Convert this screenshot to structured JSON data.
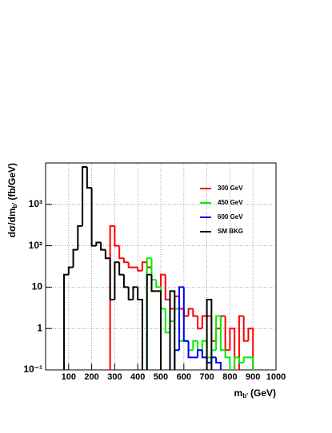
{
  "chart_data": {
    "type": "histogram",
    "x_label": {
      "main": "m",
      "sub": "b'",
      "unit": "(GeV)"
    },
    "y_label": {
      "main": "dσ/dm",
      "sub": "b'",
      "unit": "(fb/GeV)"
    },
    "bins": [
      80,
      100,
      120,
      140,
      160,
      180,
      200,
      220,
      240,
      260,
      280,
      300,
      320,
      340,
      360,
      380,
      400,
      420,
      440,
      460,
      480,
      500,
      520,
      540,
      560,
      580,
      600,
      620,
      640,
      660,
      680,
      700,
      720,
      740,
      760,
      780,
      800,
      820,
      840,
      860,
      880,
      900,
      920
    ],
    "series": [
      {
        "name": "300 GeV",
        "color": "#ff0000",
        "values": [
          null,
          null,
          null,
          null,
          null,
          null,
          null,
          null,
          null,
          null,
          300,
          100,
          50,
          40,
          30,
          30,
          25,
          40,
          30,
          8,
          8,
          20,
          5,
          3,
          6,
          3,
          2,
          3,
          2,
          1,
          2,
          2,
          0.5,
          1,
          2,
          0.3,
          1,
          null,
          2,
          0.5,
          1,
          null
        ]
      },
      {
        "name": "450 GeV",
        "color": "#00ee00",
        "values": [
          null,
          null,
          null,
          null,
          null,
          null,
          null,
          null,
          null,
          null,
          null,
          null,
          null,
          null,
          null,
          null,
          null,
          null,
          50,
          15,
          10,
          3,
          0.8,
          1.5,
          3,
          0.5,
          0.5,
          0.3,
          0.5,
          0.3,
          0.5,
          0.2,
          0.3,
          2,
          0.3,
          0.2,
          null,
          0.2,
          0.15,
          0.2,
          0.2,
          null
        ]
      },
      {
        "name": "600 GeV",
        "color": "#0000ee",
        "values": [
          null,
          null,
          null,
          null,
          null,
          null,
          null,
          null,
          null,
          null,
          null,
          null,
          null,
          null,
          null,
          null,
          null,
          null,
          null,
          null,
          null,
          null,
          null,
          null,
          0.3,
          10,
          0.5,
          0.2,
          0.2,
          0.3,
          0.2,
          0.15,
          0.2,
          0.15,
          null,
          null,
          null,
          null,
          null,
          null,
          null,
          null
        ]
      },
      {
        "name": "SM BKG",
        "color": "#000000",
        "values": [
          20,
          30,
          80,
          300,
          8000,
          2500,
          100,
          120,
          80,
          50,
          5,
          40,
          20,
          10,
          5,
          10,
          5,
          null,
          20,
          8,
          8,
          null,
          null,
          8,
          null,
          null,
          null,
          null,
          null,
          null,
          null,
          5,
          null,
          null,
          null,
          null,
          null,
          null,
          null,
          null,
          null,
          null
        ]
      }
    ],
    "xlim": [
      0,
      1000
    ],
    "xticks": [
      100,
      200,
      300,
      400,
      500,
      600,
      700,
      800,
      900,
      1000
    ],
    "ylim": [
      0.1,
      10000
    ],
    "yticks": [
      {
        "value": 0.1,
        "label": "10⁻¹"
      },
      1,
      10,
      {
        "value": 100,
        "label": "10²"
      },
      {
        "value": 1000,
        "label": "10³"
      }
    ],
    "log_y": true,
    "grid": true,
    "legend": "upper right"
  }
}
